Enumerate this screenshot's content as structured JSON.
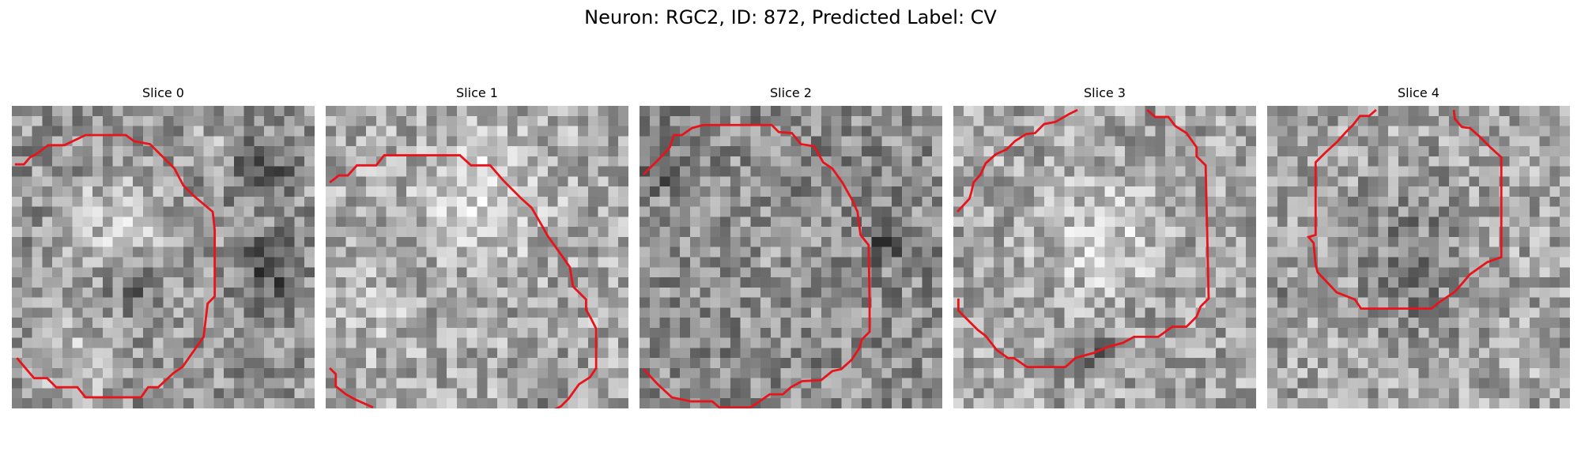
{
  "figure": {
    "title": "Neuron: RGC2, ID: 872, Predicted Label: CV"
  },
  "panels": [
    {
      "title": "Slice 0"
    },
    {
      "title": "Slice 1"
    },
    {
      "title": "Slice 2"
    },
    {
      "title": "Slice 3"
    },
    {
      "title": "Slice 4"
    }
  ],
  "colors": {
    "contour": "#e8141c"
  }
}
